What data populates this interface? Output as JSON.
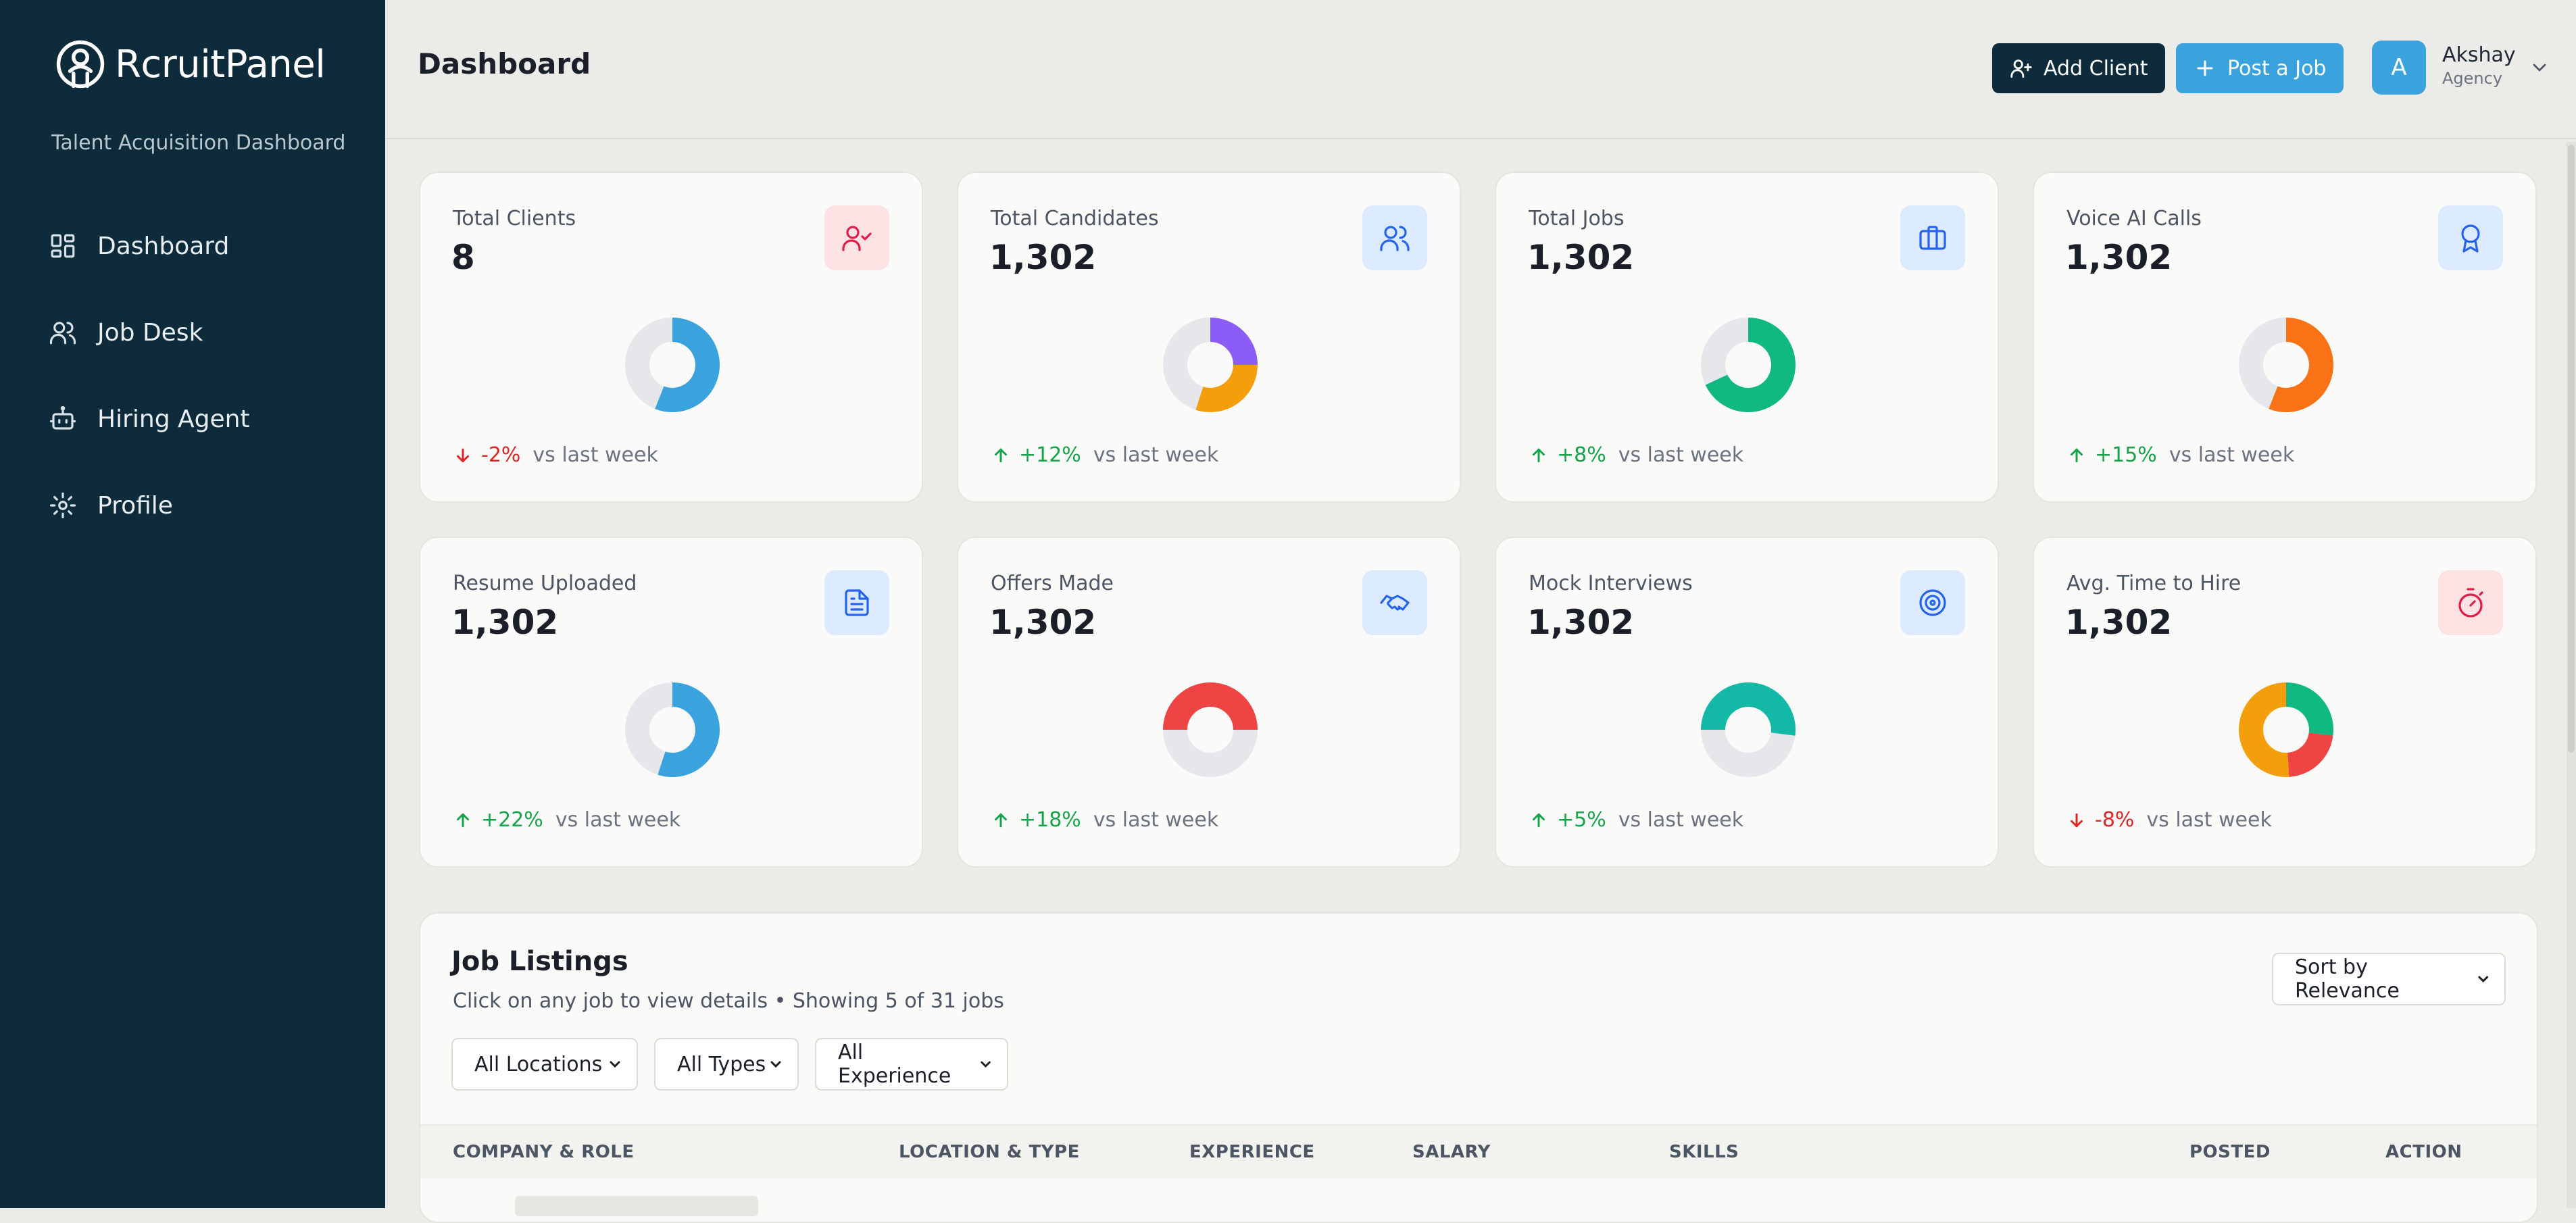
{
  "sidebar": {
    "logo_text": "RcruitPanel",
    "tagline": "Talent Acquisition Dashboard",
    "items": [
      {
        "label": "Dashboard"
      },
      {
        "label": "Job Desk"
      },
      {
        "label": "Hiring Agent"
      },
      {
        "label": "Profile"
      }
    ]
  },
  "header": {
    "title": "Dashboard",
    "add_client_label": "Add Client",
    "post_job_label": "Post a Job",
    "user": {
      "initial": "A",
      "name": "Akshay",
      "role": "Agency"
    }
  },
  "colors": {
    "sidebar_bg": "#0d2b3a",
    "accent_blue": "#3aa3de",
    "positive": "#16a34a",
    "negative": "#dc2626",
    "donut_track": "#e5e7eb"
  },
  "stats": [
    {
      "title": "Total Clients",
      "value": "8",
      "icon": "user-check-icon",
      "icon_color": "#e11d48",
      "icon_bg": "#fde2e4",
      "trend": "-2%",
      "trend_dir": "down",
      "vs": "vs last week",
      "donut": [
        {
          "fraction": 0.56,
          "color": "#3aa3de"
        }
      ]
    },
    {
      "title": "Total Candidates",
      "value": "1,302",
      "icon": "users-icon",
      "icon_color": "#2563eb",
      "icon_bg": "#dbeafe",
      "trend": "+12%",
      "trend_dir": "up",
      "vs": "vs last week",
      "donut": [
        {
          "fraction": 0.25,
          "color": "#8b5cf6"
        },
        {
          "fraction": 0.3,
          "color": "#f59e0b"
        }
      ]
    },
    {
      "title": "Total Jobs",
      "value": "1,302",
      "icon": "briefcase-icon",
      "icon_color": "#2563eb",
      "icon_bg": "#dbeafe",
      "trend": "+8%",
      "trend_dir": "up",
      "vs": "vs last week",
      "donut": [
        {
          "fraction": 0.68,
          "color": "#10b981"
        }
      ]
    },
    {
      "title": "Voice AI Calls",
      "value": "1,302",
      "icon": "award-icon",
      "icon_color": "#2563eb",
      "icon_bg": "#dbeafe",
      "trend": "+15%",
      "trend_dir": "up",
      "vs": "vs last week",
      "donut": [
        {
          "fraction": 0.56,
          "color": "#f97316"
        }
      ]
    },
    {
      "title": "Resume Uploaded",
      "value": "1,302",
      "icon": "file-text-icon",
      "icon_color": "#2563eb",
      "icon_bg": "#dbeafe",
      "trend": "+22%",
      "trend_dir": "up",
      "vs": "vs last week",
      "donut": [
        {
          "fraction": 0.55,
          "color": "#3aa3de"
        }
      ]
    },
    {
      "title": "Offers Made",
      "value": "1,302",
      "icon": "handshake-icon",
      "icon_color": "#2563eb",
      "icon_bg": "#dbeafe",
      "trend": "+18%",
      "trend_dir": "up",
      "vs": "vs last week",
      "donut": [
        {
          "fraction": 0.5,
          "color": "#ef4444",
          "start": 0.75
        }
      ]
    },
    {
      "title": "Mock Interviews",
      "value": "1,302",
      "icon": "target-icon",
      "icon_color": "#2563eb",
      "icon_bg": "#dbeafe",
      "trend": "+5%",
      "trend_dir": "up",
      "vs": "vs last week",
      "donut": [
        {
          "fraction": 0.52,
          "color": "#14b8a6",
          "start": 0.75
        }
      ]
    },
    {
      "title": "Avg. Time to Hire",
      "value": "1,302",
      "icon": "timer-icon",
      "icon_color": "#e11d48",
      "icon_bg": "#fde2e4",
      "trend": "-8%",
      "trend_dir": "down",
      "vs": "vs last week",
      "donut": [
        {
          "fraction": 0.27,
          "color": "#10b981"
        },
        {
          "fraction": 0.22,
          "color": "#ef4444"
        },
        {
          "fraction": 0.51,
          "color": "#f59e0b"
        }
      ]
    }
  ],
  "listings": {
    "title": "Job Listings",
    "subtitle": "Click on any job to view details • Showing 5 of 31 jobs",
    "sort": "Sort by Relevance",
    "filters": {
      "location": "All Locations",
      "type": "All Types",
      "experience": "All Experience"
    },
    "columns": [
      "COMPANY & ROLE",
      "LOCATION & TYPE",
      "EXPERIENCE",
      "SALARY",
      "SKILLS",
      "POSTED",
      "ACTION"
    ]
  }
}
